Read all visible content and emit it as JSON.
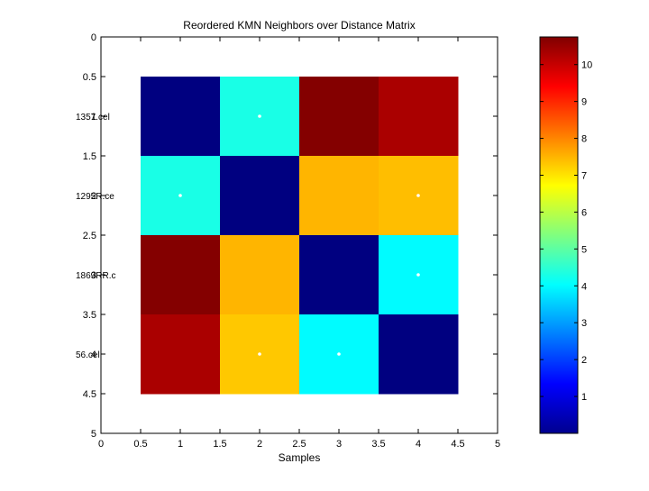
{
  "chart_data": {
    "type": "heatmap",
    "title": "Reordered KMN Neighbors over Distance Matrix",
    "xlabel": "Samples",
    "ylabel": "",
    "xlim": [
      0,
      5
    ],
    "ylim": [
      0,
      5
    ],
    "y_reversed": true,
    "grid": false,
    "xticks": [
      "0",
      "0.5",
      "1",
      "1.5",
      "2",
      "2.5",
      "3",
      "3.5",
      "4",
      "4.5",
      "5"
    ],
    "yticks": [
      "0",
      "0.5",
      "1",
      "1.5",
      "2",
      "2.5",
      "3",
      "3.5",
      "4",
      "4.5",
      "5"
    ],
    "row_labels": [
      "1357.cel",
      "1295R.ce",
      "1869RR.c",
      "56.cel"
    ],
    "matrix": [
      [
        0.0,
        4.3,
        10.7,
        10.3
      ],
      [
        4.3,
        0.0,
        7.5,
        7.4
      ],
      [
        10.7,
        7.5,
        0.0,
        4.0
      ],
      [
        10.3,
        7.3,
        4.0,
        0.0
      ]
    ],
    "neighbor_markers": [
      {
        "row": 1,
        "col": 2
      },
      {
        "row": 2,
        "col": 1
      },
      {
        "row": 2,
        "col": 4
      },
      {
        "row": 3,
        "col": 4
      },
      {
        "row": 4,
        "col": 2
      },
      {
        "row": 4,
        "col": 3
      }
    ],
    "colormap": "jet",
    "colorbar": {
      "min": 0,
      "max": 10.75,
      "ticks": [
        1,
        2,
        3,
        4,
        5,
        6,
        7,
        8,
        9,
        10
      ],
      "tick_labels": [
        "1",
        "2",
        "3",
        "4",
        "5",
        "6",
        "7",
        "8",
        "9",
        "10"
      ],
      "placement": "right"
    }
  }
}
